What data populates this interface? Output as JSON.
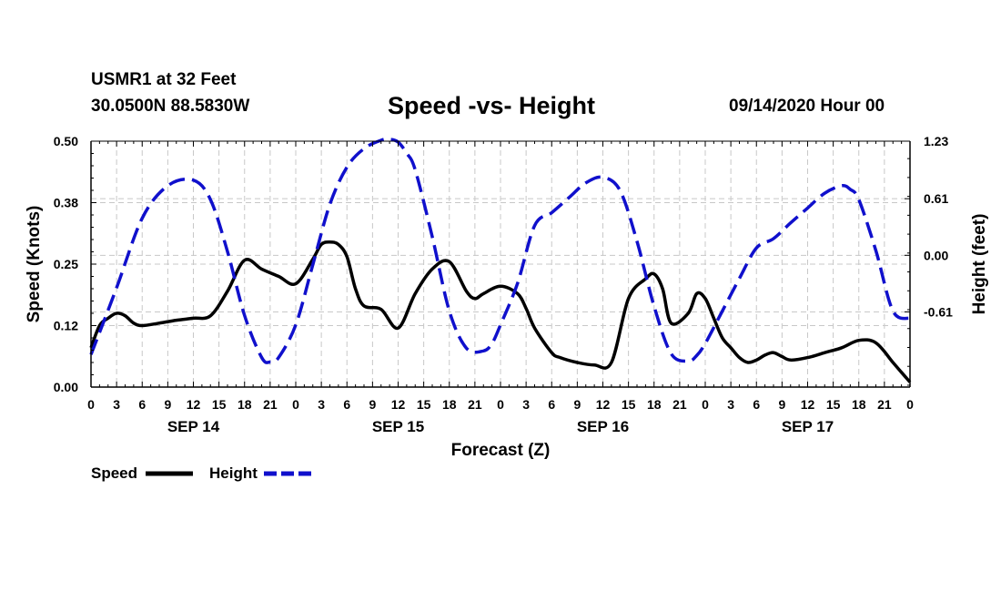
{
  "header": {
    "station": "USMR1 at 32 Feet",
    "coords": "30.0500N 88.5830W",
    "title": "Speed -vs- Height",
    "date": "09/14/2020 Hour 00"
  },
  "legend": {
    "speed_label": "Speed",
    "height_label": "Height"
  },
  "colors": {
    "speed": "#000000",
    "height": "#1010cc",
    "grid": "#c8c8c8"
  },
  "chart_data": {
    "type": "line",
    "title": "Speed -vs- Height",
    "xlabel": "Forecast (Z)",
    "ylabel_left": "Speed (Knots)",
    "ylabel_right": "Height (feet)",
    "x_range_hours": [
      0,
      96
    ],
    "x_tick_labels": [
      "0",
      "3",
      "6",
      "9",
      "12",
      "15",
      "18",
      "21",
      "0",
      "3",
      "6",
      "9",
      "12",
      "15",
      "18",
      "21",
      "0",
      "3",
      "6",
      "9",
      "12",
      "15",
      "18",
      "21",
      "0",
      "3",
      "6",
      "9",
      "12",
      "15",
      "18",
      "21",
      "0"
    ],
    "day_labels": [
      {
        "hour": 12,
        "label": "SEP 14"
      },
      {
        "hour": 36,
        "label": "SEP 15"
      },
      {
        "hour": 60,
        "label": "SEP 16"
      },
      {
        "hour": 84,
        "label": "SEP 17"
      }
    ],
    "left_axis": {
      "range": [
        0,
        0.5
      ],
      "ticks": [
        0,
        0.125,
        0.25,
        0.375,
        0.5
      ],
      "tick_labels": [
        "0.00",
        "0.12",
        "0.25",
        "0.38",
        "0.50"
      ]
    },
    "right_axis": {
      "range": [
        -1.42,
        1.23
      ],
      "ticks": [
        -0.61,
        0.0,
        0.61,
        1.23
      ],
      "tick_labels": [
        "-0.61",
        "0.00",
        "0.61",
        "1.23"
      ]
    },
    "grid": true,
    "legend_position": "bottom-left",
    "series": [
      {
        "name": "Speed",
        "axis": "left",
        "style": "solid",
        "x": [
          0,
          1,
          2,
          3,
          4,
          5,
          6,
          8,
          10,
          12,
          14,
          16,
          18,
          20,
          22,
          24,
          26,
          27,
          28,
          29,
          30,
          31,
          32,
          34,
          36,
          38,
          40,
          42,
          44,
          45,
          46,
          48,
          50,
          51,
          52,
          54,
          55,
          57,
          59,
          61,
          63,
          65,
          66,
          67,
          68,
          70,
          71,
          72,
          73,
          74,
          75,
          76,
          77,
          78,
          79,
          80,
          81,
          82,
          84,
          86,
          88,
          90,
          92,
          94,
          95,
          96
        ],
        "y": [
          0.08,
          0.125,
          0.14,
          0.15,
          0.145,
          0.13,
          0.125,
          0.13,
          0.136,
          0.14,
          0.145,
          0.195,
          0.258,
          0.24,
          0.225,
          0.21,
          0.26,
          0.29,
          0.295,
          0.29,
          0.265,
          0.2,
          0.165,
          0.158,
          0.12,
          0.19,
          0.24,
          0.255,
          0.195,
          0.18,
          0.19,
          0.205,
          0.19,
          0.16,
          0.12,
          0.07,
          0.06,
          0.05,
          0.045,
          0.05,
          0.18,
          0.22,
          0.23,
          0.2,
          0.13,
          0.15,
          0.19,
          0.18,
          0.14,
          0.1,
          0.08,
          0.06,
          0.05,
          0.055,
          0.065,
          0.07,
          0.062,
          0.055,
          0.06,
          0.07,
          0.08,
          0.095,
          0.09,
          0.05,
          0.03,
          0.01
        ]
      },
      {
        "name": "Height",
        "axis": "right",
        "style": "dashed",
        "x": [
          0,
          3,
          6,
          9,
          12,
          14,
          16,
          18,
          20,
          21,
          22,
          24,
          26,
          28,
          30,
          32,
          34,
          35,
          36,
          37,
          38,
          40,
          42,
          44,
          46,
          47,
          48,
          50,
          52,
          54,
          56,
          58,
          60,
          62,
          64,
          66,
          68,
          70,
          71,
          72,
          74,
          76,
          78,
          80,
          82,
          84,
          86,
          88,
          89,
          90,
          92,
          94,
          96
        ],
        "y": [
          -1.07,
          -0.35,
          0.4,
          0.75,
          0.81,
          0.6,
          0.04,
          -0.65,
          -1.1,
          -1.15,
          -1.1,
          -0.75,
          -0.1,
          0.55,
          0.95,
          1.15,
          1.24,
          1.25,
          1.22,
          1.1,
          0.92,
          0.2,
          -0.6,
          -1.0,
          -1.03,
          -0.95,
          -0.75,
          -0.3,
          0.32,
          0.46,
          0.62,
          0.78,
          0.84,
          0.7,
          0.15,
          -0.55,
          -1.06,
          -1.14,
          -1.08,
          -0.95,
          -0.6,
          -0.25,
          0.08,
          0.18,
          0.35,
          0.51,
          0.67,
          0.75,
          0.71,
          0.6,
          0.05,
          -0.6,
          -0.68
        ]
      }
    ]
  }
}
